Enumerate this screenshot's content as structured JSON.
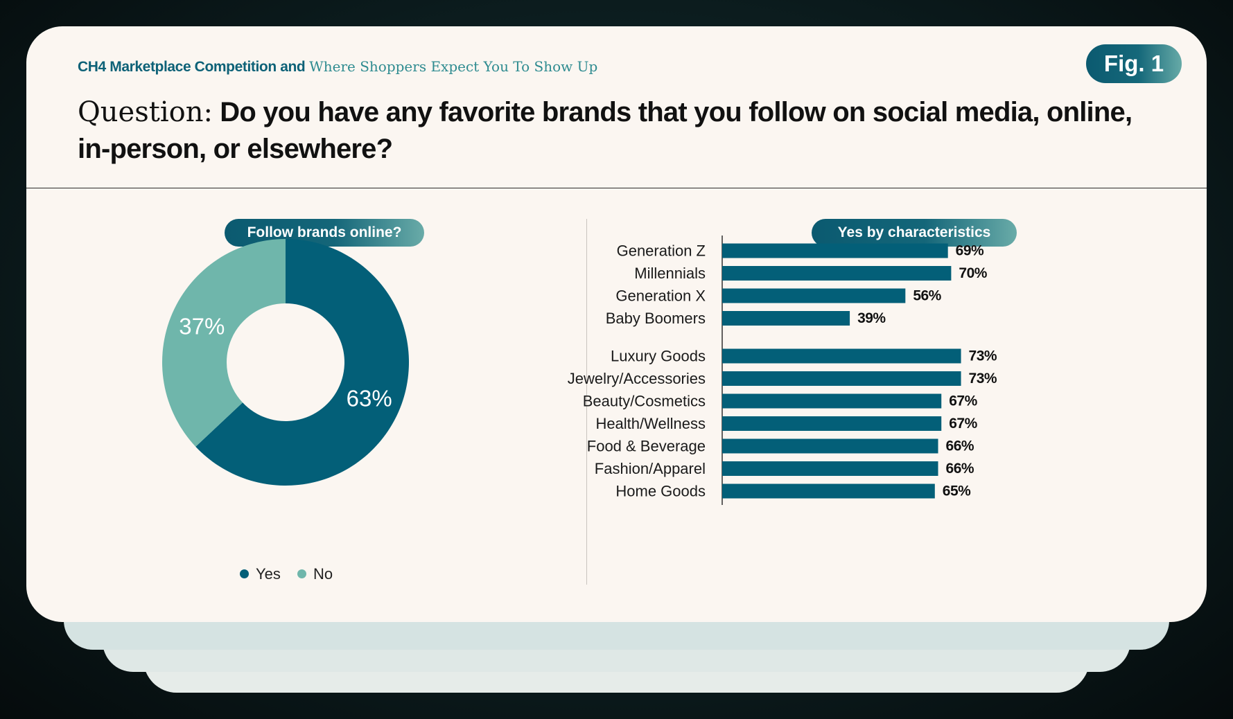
{
  "header": {
    "subtitle_bold": "CH4 Marketplace Competition and",
    "subtitle_serif": "Where Shoppers Expect You To Show Up",
    "fig_label": "Fig. 1",
    "question_lead": "Question:",
    "question_text": "Do you have any favorite brands that you follow on social media, online, in-person, or elsewhere?"
  },
  "colors": {
    "dark_teal": "#035f78",
    "light_teal": "#6fb6ab",
    "background": "#fbf6f1"
  },
  "chart_data": [
    {
      "type": "pie",
      "title": "Follow brands online?",
      "slices": [
        {
          "label": "Yes",
          "value": 63,
          "display": "63%",
          "color": "#035f78"
        },
        {
          "label": "No",
          "value": 37,
          "display": "37%",
          "color": "#6fb6ab"
        }
      ],
      "legend": "bottom"
    },
    {
      "type": "bar",
      "orientation": "horizontal",
      "title": "Yes by characteristics",
      "categories": [
        "Generation Z",
        "Millennials",
        "Generation X",
        "Baby Boomers",
        "Luxury Goods",
        "Jewelry/Accessories",
        "Beauty/Cosmetics",
        "Health/Wellness",
        "Food & Beverage",
        "Fashion/Apparel",
        "Home Goods"
      ],
      "values": [
        69,
        70,
        56,
        39,
        73,
        73,
        67,
        67,
        66,
        66,
        65
      ],
      "labels": [
        "69%",
        "70%",
        "56%",
        "39%",
        "73%",
        "73%",
        "67%",
        "67%",
        "66%",
        "66%",
        "65%"
      ],
      "groups": [
        [
          "Generation Z",
          "Millennials",
          "Generation X",
          "Baby Boomers"
        ],
        [
          "Luxury Goods",
          "Jewelry/Accessories",
          "Beauty/Cosmetics",
          "Health/Wellness",
          "Food & Beverage",
          "Fashion/Apparel",
          "Home Goods"
        ]
      ],
      "xlim": [
        0,
        100
      ],
      "grid": false,
      "color": "#035f78"
    }
  ]
}
